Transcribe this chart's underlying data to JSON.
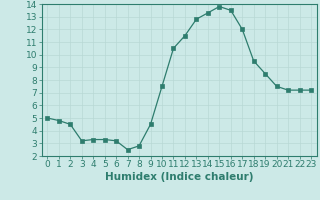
{
  "x": [
    0,
    1,
    2,
    3,
    4,
    5,
    6,
    7,
    8,
    9,
    10,
    11,
    12,
    13,
    14,
    15,
    16,
    17,
    18,
    19,
    20,
    21,
    22,
    23
  ],
  "y": [
    5.0,
    4.8,
    4.5,
    3.2,
    3.3,
    3.3,
    3.2,
    2.5,
    2.8,
    4.5,
    7.5,
    10.5,
    11.5,
    12.8,
    13.3,
    13.8,
    13.5,
    12.0,
    9.5,
    8.5,
    7.5,
    7.2,
    7.2,
    7.2
  ],
  "line_color": "#2e7d6e",
  "marker": "s",
  "marker_size": 2.5,
  "bg_color": "#cce9e7",
  "grid_color": "#b8d8d5",
  "xlabel": "Humidex (Indice chaleur)",
  "xlim": [
    -0.5,
    23.5
  ],
  "ylim": [
    2,
    14
  ],
  "yticks": [
    2,
    3,
    4,
    5,
    6,
    7,
    8,
    9,
    10,
    11,
    12,
    13,
    14
  ],
  "xticks": [
    0,
    1,
    2,
    3,
    4,
    5,
    6,
    7,
    8,
    9,
    10,
    11,
    12,
    13,
    14,
    15,
    16,
    17,
    18,
    19,
    20,
    21,
    22,
    23
  ],
  "tick_fontsize": 6.5,
  "xlabel_fontsize": 7.5
}
